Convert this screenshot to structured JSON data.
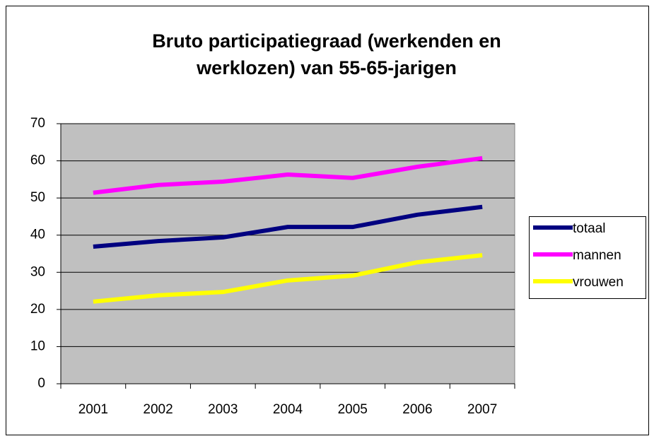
{
  "chart_data": {
    "type": "line",
    "title": [
      "Bruto participatiegraad (werkenden en",
      "werklozen) van 55-65-jarigen"
    ],
    "categories": [
      "2001",
      "2002",
      "2003",
      "2004",
      "2005",
      "2006",
      "2007"
    ],
    "series": [
      {
        "name": "totaal",
        "color": "#000080",
        "values": [
          36.9,
          38.4,
          39.4,
          42.2,
          42.2,
          45.5,
          47.6
        ]
      },
      {
        "name": "mannen",
        "color": "#ff00ff",
        "values": [
          51.4,
          53.5,
          54.4,
          56.3,
          55.4,
          58.4,
          60.7
        ]
      },
      {
        "name": "vrouwen",
        "color": "#ffff00",
        "values": [
          22.1,
          23.8,
          24.7,
          27.8,
          29.1,
          32.7,
          34.6
        ]
      }
    ],
    "ylim": [
      0,
      70
    ],
    "yticks": [
      0,
      10,
      20,
      30,
      40,
      50,
      60,
      70
    ],
    "grid": true,
    "legend": "right"
  }
}
